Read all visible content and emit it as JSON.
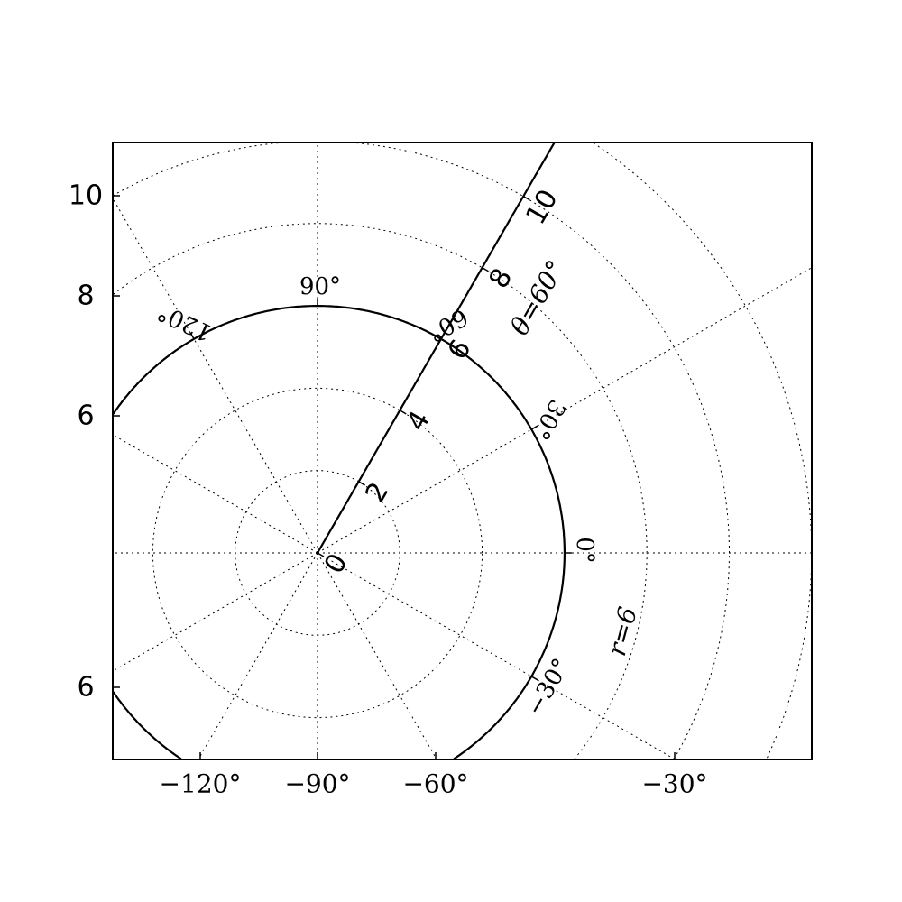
{
  "chart_data": {
    "type": "line",
    "projection": "polar (curvilinear grid on cartesian axes)",
    "grid": true,
    "grid_style": "dotted",
    "grid_radii": [
      2,
      4,
      6,
      8,
      10,
      12
    ],
    "grid_angles_deg": [
      -150,
      -120,
      -90,
      -60,
      -30,
      0,
      30,
      60,
      90,
      120,
      150,
      180
    ],
    "series": [
      {
        "kind": "circle",
        "r": 6,
        "color": "#000000"
      },
      {
        "kind": "ray",
        "theta_deg": 60,
        "color": "#000000"
      }
    ],
    "left_tick_labels": [
      {
        "text": "10",
        "y": 10
      },
      {
        "text": "8",
        "y": 8
      },
      {
        "text": "6",
        "y": 6
      },
      {
        "text": "6",
        "y": -6
      }
    ],
    "bottom_tick_labels": [
      {
        "text": "−120°",
        "theta": -120
      },
      {
        "text": "−90°",
        "theta": -90
      },
      {
        "text": "−60°",
        "theta": -60
      },
      {
        "text": "−30°",
        "theta": -30
      }
    ],
    "ray_tick_labels": [
      {
        "text": "0",
        "r": 0
      },
      {
        "text": "2",
        "r": 2
      },
      {
        "text": "4",
        "r": 4
      },
      {
        "text": "6",
        "r": 6
      },
      {
        "text": "8",
        "r": 8
      },
      {
        "text": "10",
        "r": 10
      }
    ],
    "circle_tick_labels": [
      {
        "text": "120°",
        "theta": 120
      },
      {
        "text": "90°",
        "theta": 90
      },
      {
        "text": "60°",
        "theta": 60
      },
      {
        "text": "30°",
        "theta": 30
      },
      {
        "text": "0°",
        "theta": 0
      },
      {
        "text": "−30°",
        "theta": -30
      }
    ],
    "ray_axis_label": "θ=60°",
    "circle_axis_label": "r=6"
  }
}
